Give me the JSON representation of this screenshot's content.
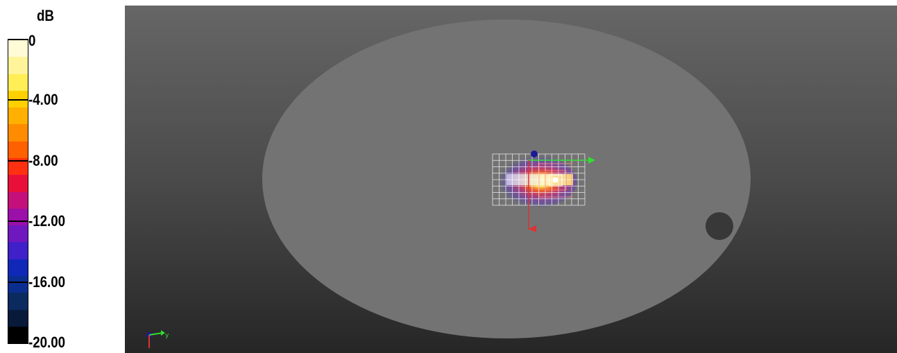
{
  "legend": {
    "unit": "dB",
    "ticks": [
      {
        "label": "0",
        "value": 0
      },
      {
        "label": "-4.00",
        "value": -4
      },
      {
        "label": "-8.00",
        "value": -8
      },
      {
        "label": "-12.00",
        "value": -12
      },
      {
        "label": "-16.00",
        "value": -16
      },
      {
        "label": "-20.00",
        "value": -20
      }
    ],
    "min": -20,
    "max": 0,
    "colors": [
      "#fffbd6",
      "#fff49a",
      "#ffee55",
      "#ffd000",
      "#ffb000",
      "#ff8c00",
      "#ff6000",
      "#ff3010",
      "#e8103a",
      "#c4107a",
      "#9a10a8",
      "#7018c0",
      "#4020c8",
      "#1028b8",
      "#0a2e90",
      "#0a2a60",
      "#081a3a",
      "#000000"
    ]
  },
  "viewport": {
    "background_top": "#666666",
    "background_bottom": "#262626",
    "phantom_color": "#737373",
    "hole_color": "#383838",
    "axes": {
      "x": "#33dd33",
      "y": "#dd3333",
      "z": "#1a1a99"
    },
    "orientation_triad": {
      "axis_label": "y"
    }
  }
}
